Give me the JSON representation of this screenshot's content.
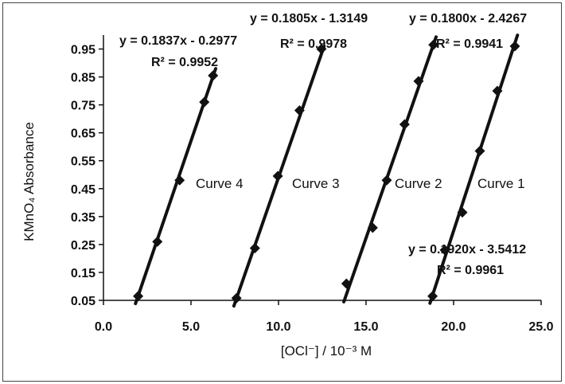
{
  "chart_data": {
    "type": "scatter",
    "xlabel": "[OCl⁻] / 10⁻³ M",
    "ylabel": "KMnO₄ Absorbance",
    "xlim": [
      0,
      25
    ],
    "ylim": [
      0.05,
      1.0
    ],
    "x_ticks": [
      "0.0",
      "5.0",
      "10.0",
      "15.0",
      "20.0",
      "25.0"
    ],
    "y_ticks": [
      "0.05",
      "0.15",
      "0.25",
      "0.35",
      "0.45",
      "0.55",
      "0.65",
      "0.75",
      "0.85",
      "0.95"
    ],
    "grid": false,
    "legend": "none",
    "marker_color": "#111111",
    "series": [
      {
        "name": "Curve 4",
        "equation": "y = 0.1837x - 0.2977",
        "r2": "R² = 0.9952",
        "slope": 0.1837,
        "intercept": -0.2977,
        "x": [
          1.98,
          3.08,
          4.35,
          5.76,
          6.26
        ],
        "y": [
          0.065,
          0.26,
          0.48,
          0.76,
          0.855
        ]
      },
      {
        "name": "Curve 3",
        "equation": "y = 0.1805x - 1.3149",
        "r2": "R² = 0.9978",
        "slope": 0.1805,
        "intercept": -1.3149,
        "x": [
          7.6,
          8.65,
          9.96,
          11.2,
          12.45
        ],
        "y": [
          0.058,
          0.237,
          0.495,
          0.73,
          0.95
        ]
      },
      {
        "name": "Curve 2",
        "equation": "y = 0.1800x - 2.4267",
        "r2": "R² = 0.9941",
        "slope": 0.18,
        "intercept": -2.4267,
        "x": [
          13.88,
          15.38,
          16.18,
          17.2,
          18.0,
          18.85
        ],
        "y": [
          0.11,
          0.31,
          0.48,
          0.68,
          0.835,
          0.965
        ]
      },
      {
        "name": "Curve 1",
        "equation": "y = 0.1920x - 3.5412",
        "r2": "R² = 0.9961",
        "slope": 0.192,
        "intercept": -3.5412,
        "x": [
          18.8,
          19.5,
          20.5,
          21.5,
          22.5,
          23.5
        ],
        "y": [
          0.065,
          0.23,
          0.365,
          0.585,
          0.8,
          0.96
        ]
      }
    ]
  }
}
